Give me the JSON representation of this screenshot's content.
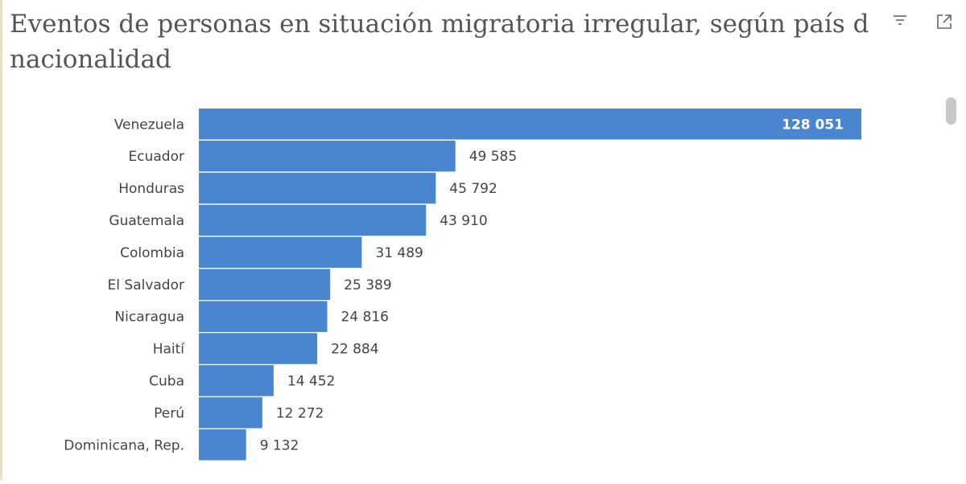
{
  "title_line1": "Eventos de personas en situación migratoria irregular, según país d",
  "title_line2": "nacionalidad",
  "icons": {
    "filter": "filter-icon",
    "focus": "focus-mode-icon"
  },
  "colors": {
    "bar": "#4a86d0",
    "label": "#444444",
    "title": "#555555",
    "inside_label": "#ffffff"
  },
  "chart_data": {
    "type": "bar",
    "orientation": "horizontal",
    "categories": [
      "Venezuela",
      "Ecuador",
      "Honduras",
      "Guatemala",
      "Colombia",
      "El Salvador",
      "Nicaragua",
      "Haití",
      "Cuba",
      "Perú",
      "Dominicana, Rep."
    ],
    "values": [
      128051,
      49585,
      45792,
      43910,
      31489,
      25389,
      24816,
      22884,
      14452,
      12272,
      9132
    ],
    "value_labels": [
      "128 051",
      "49 585",
      "45 792",
      "43 910",
      "31 489",
      "25 389",
      "24 816",
      "22 884",
      "14 452",
      "12 272",
      "9 132"
    ],
    "title": "Eventos de personas en situación migratoria irregular, según país de nacionalidad",
    "xlabel": "",
    "ylabel": "",
    "xlim": [
      0,
      128051
    ],
    "grid": false,
    "legend": "none"
  }
}
